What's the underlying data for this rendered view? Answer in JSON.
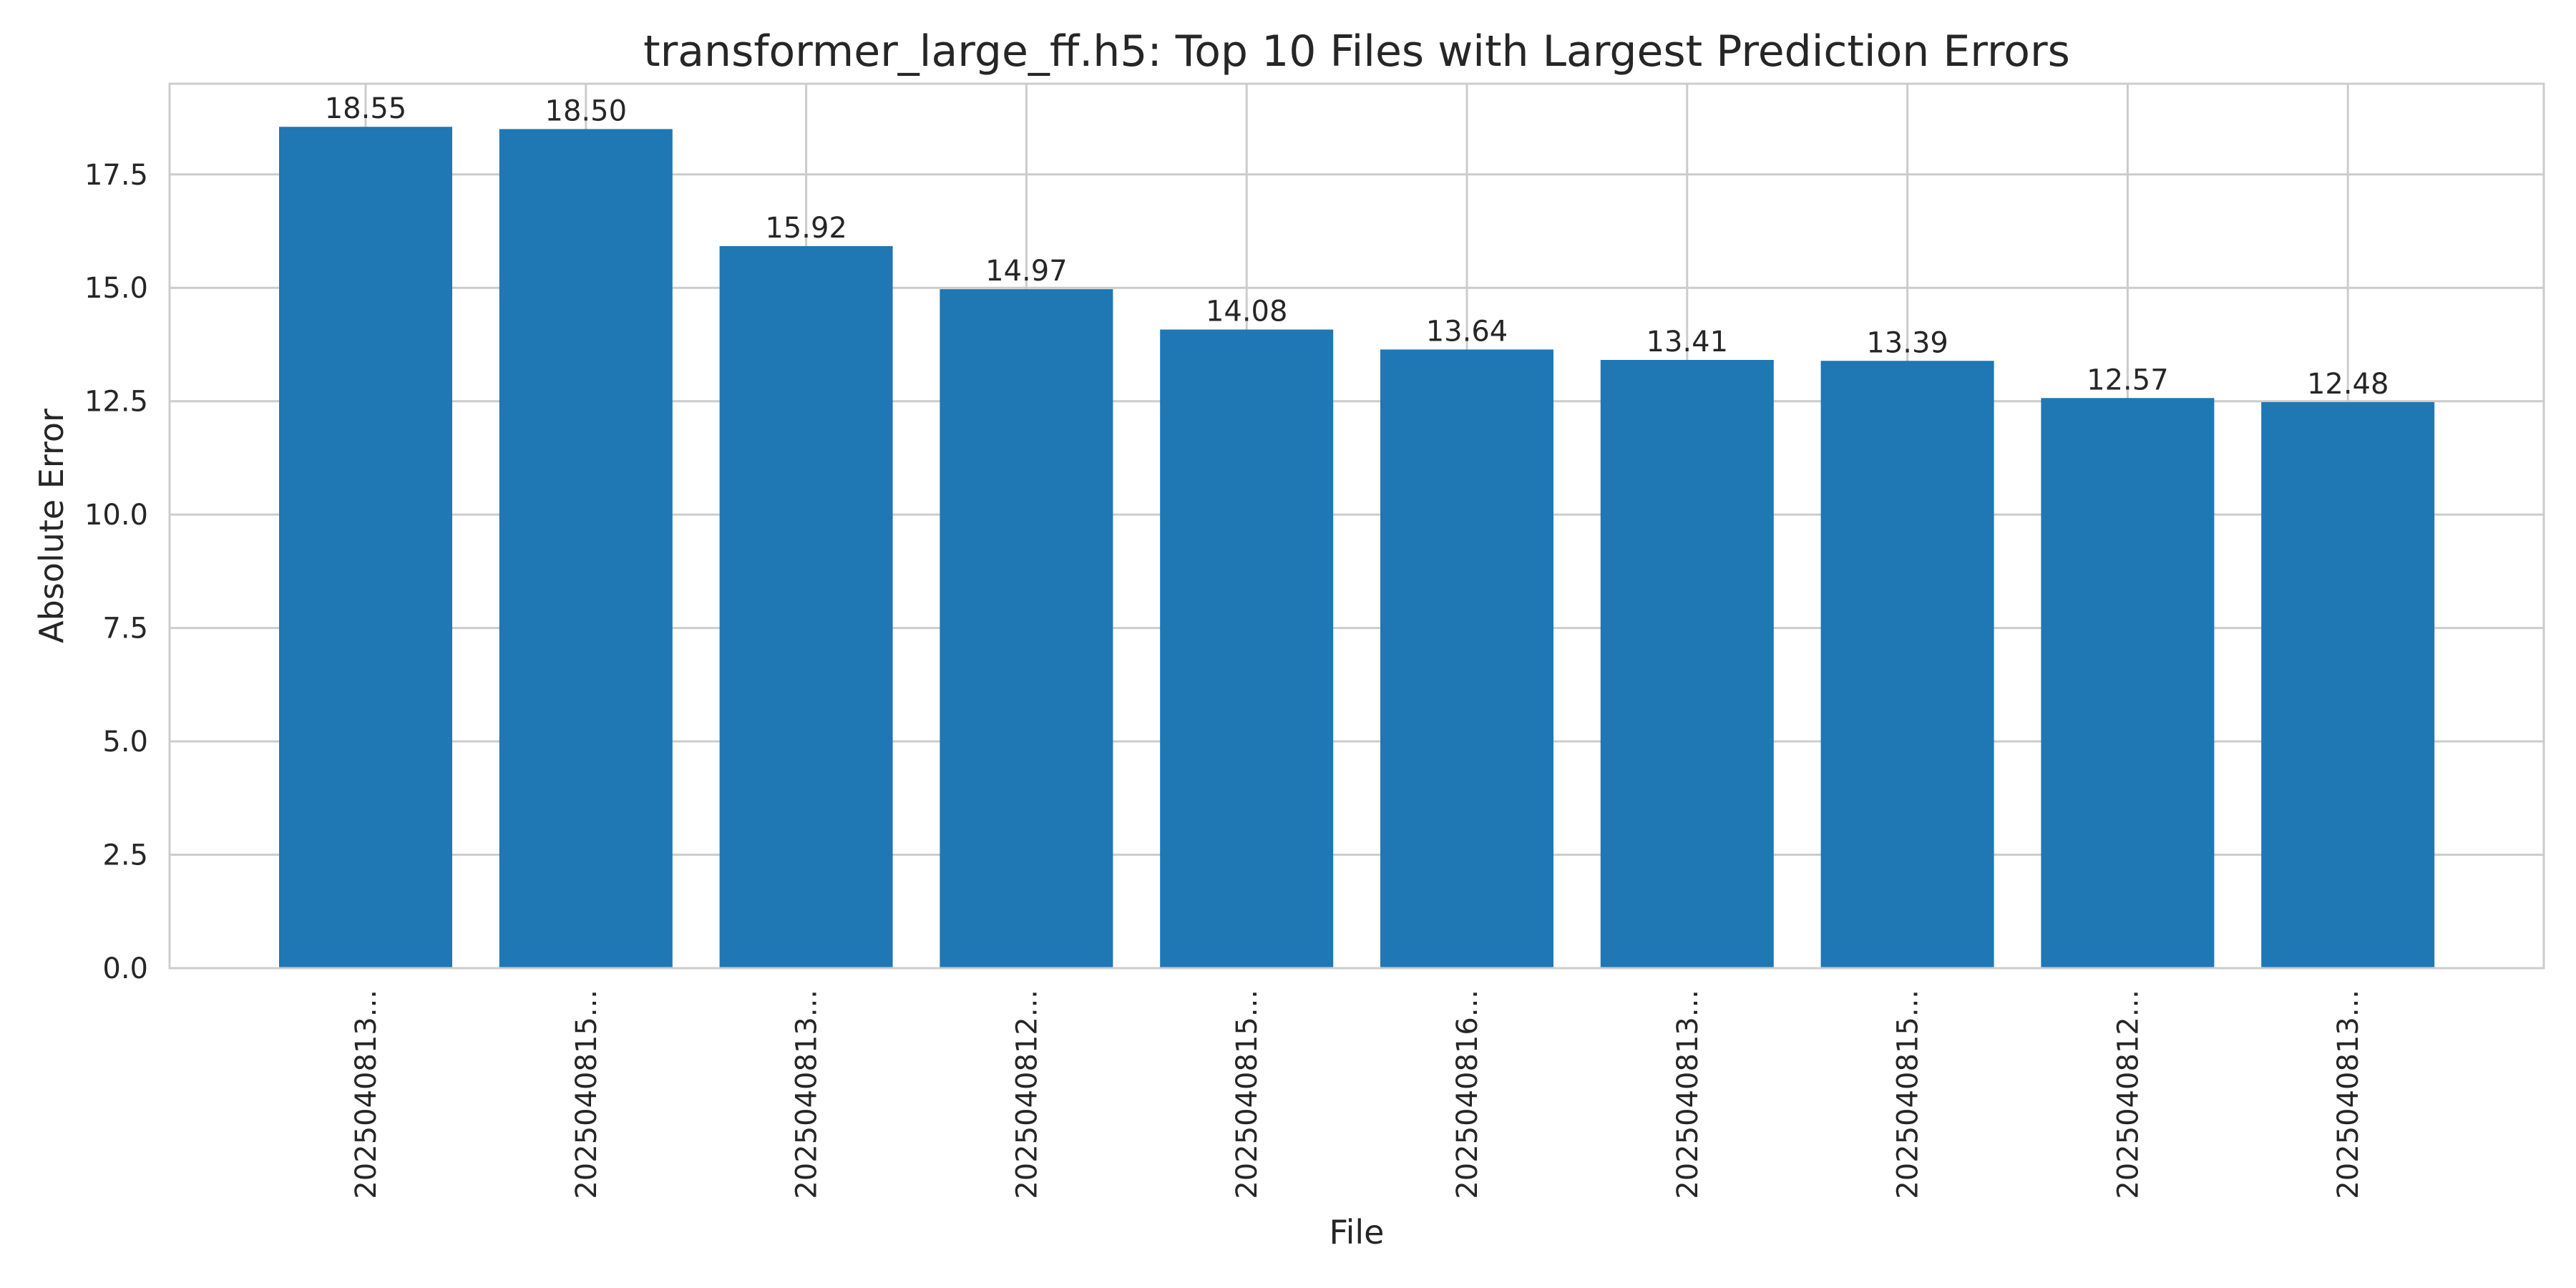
{
  "chart_data": {
    "type": "bar",
    "title": "transformer_large_ff.h5: Top 10 Files with Largest Prediction Errors",
    "xlabel": "File",
    "ylabel": "Absolute Error",
    "categories": [
      "2025040813...",
      "2025040815...",
      "2025040813...",
      "2025040812...",
      "2025040815...",
      "2025040816...",
      "2025040813...",
      "2025040815...",
      "2025040812...",
      "2025040813..."
    ],
    "values": [
      18.55,
      18.5,
      15.92,
      14.97,
      14.08,
      13.64,
      13.41,
      13.39,
      12.57,
      12.48
    ],
    "value_labels": [
      "18.55",
      "18.50",
      "15.92",
      "14.97",
      "14.08",
      "13.64",
      "13.41",
      "13.39",
      "12.57",
      "12.48"
    ],
    "ylim": [
      0,
      19.5
    ],
    "yticks": [
      0.0,
      2.5,
      5.0,
      7.5,
      10.0,
      12.5,
      15.0,
      17.5
    ],
    "ytick_labels": [
      "0.0",
      "2.5",
      "5.0",
      "7.5",
      "10.0",
      "12.5",
      "15.0",
      "17.5"
    ],
    "grid": true,
    "bar_color": "#1f77b4",
    "grid_color": "#cccccc",
    "text_color": "#262626"
  }
}
